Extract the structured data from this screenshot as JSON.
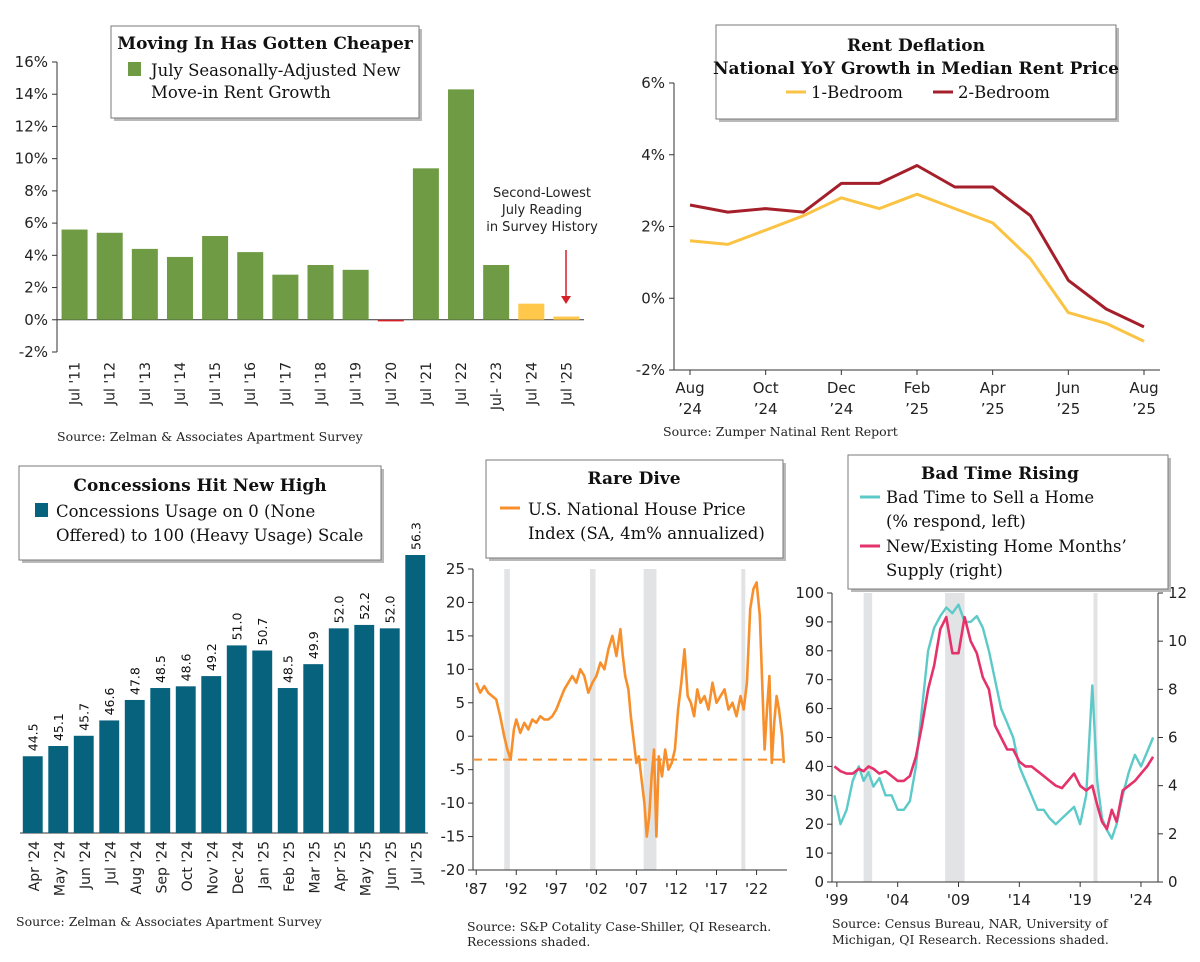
{
  "colors": {
    "green": "#6e9b43",
    "yellow": "#ffc84a",
    "red_small": "#d62027",
    "teal_bar": "#07627e",
    "orange": "#f7902c",
    "line_1br": "#fbc344",
    "line_2br": "#a51f2b",
    "cyan": "#5ccac8",
    "pink": "#e4326b",
    "recession": "#e2e3e5"
  },
  "chart_data": [
    {
      "id": "chart1",
      "type": "bar",
      "title": "Moving In Has Gotten Cheaper",
      "legend": [
        "July Seasonally-Adjusted New",
        "Move-in Rent Growth"
      ],
      "categories": [
        "Jul '11",
        "Jul '12",
        "Jul '13",
        "Jul '14",
        "Jul '15",
        "Jul '16",
        "Jul '17",
        "Jul '18",
        "Jul '19",
        "Jul '20",
        "Jul '21",
        "Jul '22",
        "Jul- '23",
        "Jul '24",
        "Jul '25"
      ],
      "values": [
        5.6,
        5.4,
        4.4,
        3.9,
        5.2,
        4.2,
        2.8,
        3.4,
        3.1,
        -0.1,
        9.4,
        14.3,
        3.4,
        1.0,
        0.2
      ],
      "ylim": [
        -2,
        16
      ],
      "yticks": [
        "-2%",
        "0%",
        "2%",
        "4%",
        "6%",
        "8%",
        "10%",
        "12%",
        "14%",
        "16%"
      ],
      "annotation": [
        "Second-Lowest",
        "July Reading",
        "in Survey History"
      ],
      "source": "Source: Zelman & Associates Apartment Survey"
    },
    {
      "id": "chart2",
      "type": "line",
      "title": [
        "Rent Deflation",
        "National YoY Growth in Median Rent Price"
      ],
      "series": [
        {
          "name": "1-Bedroom",
          "values": [
            1.6,
            1.5,
            1.9,
            2.3,
            2.8,
            2.5,
            2.9,
            2.5,
            2.1,
            1.1,
            -0.4,
            -0.7,
            -1.2
          ]
        },
        {
          "name": "2-Bedroom",
          "values": [
            2.6,
            2.4,
            2.5,
            2.4,
            3.2,
            3.2,
            3.7,
            3.1,
            3.1,
            2.3,
            0.5,
            -0.3,
            -0.8
          ]
        }
      ],
      "x": [
        "Aug '24",
        "Sep '24",
        "Oct '24",
        "Nov '24",
        "Dec '24",
        "Jan '25",
        "Feb '25",
        "Mar '25",
        "Apr '25",
        "May '25",
        "Jun '25",
        "Jul '25",
        "Aug '25"
      ],
      "xtick_labels": [
        [
          "Aug",
          "’24"
        ],
        [
          "Oct",
          "’24"
        ],
        [
          "Dec",
          "’24"
        ],
        [
          "Feb",
          "’25"
        ],
        [
          "Apr",
          "’25"
        ],
        [
          "Jun",
          "’25"
        ],
        [
          "Aug",
          "’25"
        ]
      ],
      "ylim": [
        -2,
        6
      ],
      "yticks": [
        "-2%",
        "0%",
        "2%",
        "4%",
        "6%"
      ],
      "source": "Source: Zumper Natinal Rent Report"
    },
    {
      "id": "chart3",
      "type": "bar",
      "title": "Concessions Hit New High",
      "legend": [
        "Concessions Usage on 0 (None",
        "Offered) to 100 (Heavy Usage) Scale"
      ],
      "categories": [
        "Apr '24",
        "May '24",
        "Jun '24",
        "Jul '24",
        "Aug '24",
        "Sep '24",
        "Oct '24",
        "Nov '24",
        "Dec '24",
        "Jan '25",
        "Feb '25",
        "Mar '25",
        "Apr '25",
        "May '25",
        "Jun '25",
        "Jul '25"
      ],
      "values": [
        44.5,
        45.1,
        45.7,
        46.6,
        47.8,
        48.5,
        48.6,
        49.2,
        51.0,
        50.7,
        48.5,
        49.9,
        52.0,
        52.2,
        52.0,
        56.3
      ],
      "data_labels": [
        "44.5",
        "45.1",
        "45.7",
        "46.6",
        "47.8",
        "48.5",
        "48.6",
        "49.2",
        "51.0",
        "50.7",
        "48.5",
        "49.9",
        "52.0",
        "52.2",
        "52.0",
        "56.3"
      ],
      "source": "Source: Zelman & Associates Apartment Survey"
    },
    {
      "id": "chart4",
      "type": "line",
      "title": "Rare Dive",
      "legend": [
        "U.S. National House Price",
        "Index (SA, 4m% annualized)"
      ],
      "series": [
        {
          "name": "U.S. National House Price Index (SA, 4m% annualized)",
          "x": [
            1987.0,
            1987.5,
            1988.0,
            1988.5,
            1989.0,
            1989.5,
            1990.0,
            1990.5,
            1990.9,
            1991.3,
            1991.7,
            1992.0,
            1992.5,
            1993.0,
            1993.5,
            1994.0,
            1994.5,
            1995.0,
            1995.5,
            1996.0,
            1996.5,
            1997.0,
            1997.5,
            1998.0,
            1998.5,
            1999.0,
            1999.5,
            2000.0,
            2000.5,
            2001.0,
            2001.5,
            2002.0,
            2002.5,
            2003.0,
            2003.5,
            2004.0,
            2004.5,
            2005.0,
            2005.3,
            2005.6,
            2006.0,
            2006.3,
            2006.6,
            2007.0,
            2007.3,
            2007.6,
            2008.0,
            2008.3,
            2008.6,
            2008.9,
            2009.2,
            2009.5,
            2009.8,
            2010.2,
            2010.6,
            2011.0,
            2011.4,
            2011.8,
            2012.2,
            2012.6,
            2013.0,
            2013.4,
            2013.8,
            2014.2,
            2014.6,
            2015.0,
            2015.5,
            2016.0,
            2016.5,
            2017.0,
            2017.5,
            2018.0,
            2018.5,
            2019.0,
            2019.5,
            2020.0,
            2020.4,
            2020.8,
            2021.2,
            2021.6,
            2022.0,
            2022.4,
            2022.7,
            2023.0,
            2023.3,
            2023.6,
            2023.9,
            2024.2,
            2024.5,
            2024.8,
            2025.2,
            2025.4
          ],
          "values": [
            8,
            6.5,
            7.5,
            6.5,
            6,
            5.5,
            3,
            0,
            -2,
            -3.5,
            1,
            2.5,
            0.5,
            2,
            1,
            2.5,
            2,
            3,
            2.5,
            2.5,
            3,
            4,
            5.5,
            7,
            8,
            9,
            8,
            10,
            9,
            6.5,
            8,
            9,
            11,
            10,
            13,
            15,
            12,
            16,
            12,
            9,
            7,
            3,
            0,
            -4,
            -3,
            -6,
            -10,
            -15,
            -12,
            -6,
            -2,
            -15,
            -3,
            -6,
            -2,
            -5,
            -4,
            -2,
            4,
            8,
            13,
            6,
            5,
            3,
            7,
            5,
            6,
            4,
            8,
            5,
            6,
            7,
            4,
            5,
            3,
            6,
            4,
            8,
            19,
            22,
            23,
            18,
            8,
            -2,
            4,
            9,
            -4,
            2,
            6,
            4,
            0,
            -4
          ]
        }
      ],
      "reference_line": -3.5,
      "recessions": [
        [
          1990.5,
          1991.2
        ],
        [
          2001.2,
          2001.9
        ],
        [
          2007.9,
          2009.5
        ],
        [
          2020.1,
          2020.4
        ]
      ],
      "xticks": [
        "'87",
        "'92",
        "'97",
        "'02",
        "'07",
        "'12",
        "'17",
        "'22"
      ],
      "xtick_years": [
        1987,
        1992,
        1997,
        2002,
        2007,
        2012,
        2017,
        2022
      ],
      "ylim": [
        -20,
        25
      ],
      "yticks": [
        "-20",
        "-15",
        "-10",
        "-5",
        "0",
        "5",
        "10",
        "15",
        "20",
        "25"
      ],
      "source": [
        "Source: S&P Cotality Case-Shiller, QI Research.",
        "Recessions shaded."
      ]
    },
    {
      "id": "chart5",
      "type": "line",
      "title": "Bad Time Rising",
      "legend": [
        {
          "lines": [
            "Bad Time to Sell a Home",
            "(% respond, left)"
          ]
        },
        {
          "lines": [
            "New/Existing Home Months’",
            "Supply (right)"
          ]
        }
      ],
      "series": [
        {
          "name": "Bad Time to Sell a Home (% respond, left)",
          "axis": "left",
          "x": [
            1998.8,
            1999.3,
            1999.8,
            2000.3,
            2000.8,
            2001.2,
            2001.6,
            2002.0,
            2002.5,
            2003.0,
            2003.5,
            2004.0,
            2004.5,
            2005.0,
            2005.5,
            2006.0,
            2006.5,
            2007.0,
            2007.5,
            2008.0,
            2008.5,
            2009.0,
            2009.5,
            2010.0,
            2010.5,
            2011.0,
            2011.5,
            2012.0,
            2012.5,
            2013.0,
            2013.5,
            2014.0,
            2014.5,
            2015.0,
            2015.5,
            2016.0,
            2016.5,
            2017.0,
            2017.5,
            2018.0,
            2018.5,
            2019.0,
            2019.5,
            2020.0,
            2020.4,
            2020.8,
            2021.2,
            2021.6,
            2022.0,
            2022.5,
            2023.0,
            2023.5,
            2024.0,
            2024.5,
            2025.0
          ],
          "values": [
            30,
            20,
            25,
            35,
            40,
            35,
            38,
            33,
            36,
            30,
            30,
            25,
            25,
            28,
            40,
            60,
            80,
            88,
            92,
            95,
            93,
            96,
            90,
            90,
            92,
            88,
            80,
            70,
            60,
            55,
            50,
            40,
            35,
            30,
            25,
            25,
            22,
            20,
            22,
            24,
            26,
            20,
            30,
            68,
            35,
            22,
            18,
            15,
            20,
            30,
            38,
            44,
            40,
            45,
            50
          ]
        },
        {
          "name": "New/Existing Home Months’ Supply (right)",
          "axis": "right",
          "x": [
            1998.8,
            1999.3,
            1999.8,
            2000.3,
            2000.8,
            2001.2,
            2001.6,
            2002.0,
            2002.5,
            2003.0,
            2003.5,
            2004.0,
            2004.5,
            2005.0,
            2005.5,
            2006.0,
            2006.5,
            2007.0,
            2007.5,
            2008.0,
            2008.5,
            2009.0,
            2009.5,
            2010.0,
            2010.5,
            2011.0,
            2011.5,
            2012.0,
            2012.5,
            2013.0,
            2013.5,
            2014.0,
            2014.5,
            2015.0,
            2015.5,
            2016.0,
            2016.5,
            2017.0,
            2017.5,
            2018.0,
            2018.5,
            2019.0,
            2019.5,
            2020.0,
            2020.4,
            2020.8,
            2021.2,
            2021.6,
            2022.0,
            2022.5,
            2023.0,
            2023.5,
            2024.0,
            2024.5,
            2025.0
          ],
          "values": [
            4.8,
            4.6,
            4.5,
            4.5,
            4.7,
            4.6,
            4.8,
            4.7,
            4.5,
            4.6,
            4.4,
            4.2,
            4.2,
            4.4,
            5.2,
            6.5,
            8,
            9,
            10.5,
            11,
            9.5,
            9.5,
            11,
            10,
            9.5,
            8.5,
            8,
            6.5,
            6,
            5.5,
            5.5,
            5,
            4.8,
            4.8,
            4.6,
            4.4,
            4.2,
            4,
            3.9,
            4.2,
            4.5,
            4,
            3.8,
            4,
            3.2,
            2.5,
            2.2,
            3,
            2.5,
            3.8,
            4,
            4.2,
            4.5,
            4.8,
            5.2
          ]
        }
      ],
      "recessions": [
        [
          2001.2,
          2001.9
        ],
        [
          2007.9,
          2009.5
        ],
        [
          2020.1,
          2020.4
        ]
      ],
      "xticks": [
        "'99",
        "'04",
        "'09",
        "'14",
        "'19",
        "'24"
      ],
      "xtick_years": [
        1999,
        2004,
        2009,
        2014,
        2019,
        2024
      ],
      "ylim_left": [
        0,
        100
      ],
      "ylim_right": [
        0,
        12
      ],
      "yticks_left": [
        "0",
        "10",
        "20",
        "30",
        "40",
        "50",
        "60",
        "70",
        "80",
        "90",
        "100"
      ],
      "yticks_right": [
        "0",
        "2",
        "4",
        "6",
        "8",
        "10",
        "12"
      ],
      "source": [
        "Source: Census Bureau, NAR, University of",
        "Michigan, QI Research. Recessions shaded."
      ]
    }
  ]
}
